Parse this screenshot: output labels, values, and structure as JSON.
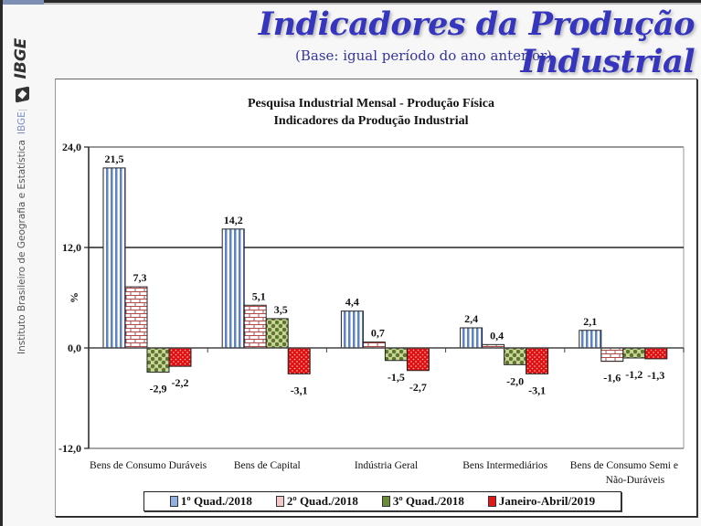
{
  "slide": {
    "title": "Indicadores da Produção Industrial",
    "subtitle": "(Base: igual período do ano anterior)",
    "sidebar": {
      "logo_text": "IBGE",
      "institution": "Instituto Brasileiro de Geografia e Estatística",
      "institution_short": "IBGE"
    }
  },
  "colors": {
    "title": "#3535bd",
    "series": [
      "#9db6e0",
      "#f3d6d6",
      "#6b8a3a",
      "#e01818"
    ],
    "series_stroke": [
      "#2d4f86",
      "#8a2a2a",
      "#33481a",
      "#7a0000"
    ]
  },
  "chart_data": {
    "type": "bar",
    "title": "Pesquisa Industrial Mensal - Produção Física",
    "subtitle": "Indicadores da Produção Industrial",
    "xlabel": "",
    "ylabel": "%",
    "ylim": [
      -12,
      24
    ],
    "yticks": [
      -12,
      0,
      12,
      24
    ],
    "ytick_labels": [
      "-12,0",
      "0,0",
      "12,0",
      "24,0"
    ],
    "grid": "horizontal major lines at 12,0 and 24,0",
    "legend_position": "bottom",
    "categories": [
      [
        "Bens de Consumo Duráveis"
      ],
      [
        "Bens de Capital"
      ],
      [
        "Indústria Geral"
      ],
      [
        "Bens Intermediários"
      ],
      [
        "Bens de Consumo Semi e",
        "Não-Duráveis"
      ]
    ],
    "series": [
      {
        "name": "1º Quad./2018",
        "values": [
          21.5,
          14.2,
          4.4,
          2.4,
          2.1
        ],
        "labels": [
          "21,5",
          "14,2",
          "4,4",
          "2,4",
          "2,1"
        ]
      },
      {
        "name": "2º Quad./2018",
        "values": [
          7.3,
          5.1,
          0.7,
          0.4,
          -1.6
        ],
        "labels": [
          "7,3",
          "5,1",
          "0,7",
          "0,4",
          "-1,6"
        ]
      },
      {
        "name": "3º Quad./2018",
        "values": [
          -2.9,
          3.5,
          -1.5,
          -2.0,
          -1.2
        ],
        "labels": [
          "-2,9",
          "3,5",
          "-1,5",
          "-2,0",
          "-1,2"
        ]
      },
      {
        "name": "Janeiro-Abril/2019",
        "values": [
          -2.2,
          -3.1,
          -2.7,
          -3.1,
          -1.3
        ],
        "labels": [
          "-2,2",
          "-3,1",
          "-2,7",
          "-3,1",
          "-1,3"
        ]
      }
    ]
  }
}
